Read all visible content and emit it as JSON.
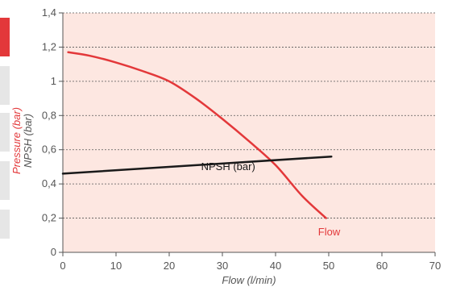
{
  "chart_data": {
    "type": "line",
    "xlabel": "Flow (l/min)",
    "ylabels": [
      {
        "text": "Pressure (bar)",
        "color": "#e3383a"
      },
      {
        "text": "NPSH (bar)",
        "color": "#555555"
      }
    ],
    "xlim": [
      0,
      70
    ],
    "ylim": [
      0,
      1.4
    ],
    "x_ticks": [
      "0",
      "10",
      "20",
      "30",
      "40",
      "50",
      "60",
      "70"
    ],
    "y_ticks": [
      "0",
      "0,2",
      "0,4",
      "0,6",
      "0,8",
      "1",
      "1,2",
      "1,4"
    ],
    "grid": "horizontal-dashed",
    "plot_background": "#fde7e1",
    "series": [
      {
        "name": "Flow",
        "color": "#e3383a",
        "label_at": [
          48,
          0.1
        ],
        "points": [
          [
            1,
            1.17
          ],
          [
            5,
            1.15
          ],
          [
            10,
            1.11
          ],
          [
            15,
            1.06
          ],
          [
            20,
            1.0
          ],
          [
            25,
            0.9
          ],
          [
            30,
            0.78
          ],
          [
            35,
            0.65
          ],
          [
            40,
            0.51
          ],
          [
            45,
            0.33
          ],
          [
            49.5,
            0.2
          ]
        ]
      },
      {
        "name": "NPSH (bar)",
        "color": "#1a1a1a",
        "label_at": [
          26,
          0.48
        ],
        "points": [
          [
            0,
            0.46
          ],
          [
            50.5,
            0.56
          ]
        ]
      }
    ]
  }
}
